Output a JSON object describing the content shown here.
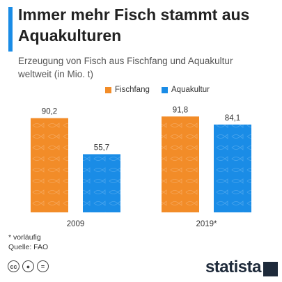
{
  "header": {
    "title": "Immer mehr Fisch stammt aus Aquakulturen",
    "subtitle": "Erzeugung von Fisch aus Fischfang und Aquakultur weltweit (in Mio. t)"
  },
  "legend": {
    "items": [
      {
        "label": "Fischfang",
        "color": "#f28c28"
      },
      {
        "label": "Aquakultur",
        "color": "#1a8ce6"
      }
    ]
  },
  "chart_data": {
    "type": "bar",
    "categories": [
      "2009",
      "2019*"
    ],
    "series": [
      {
        "name": "Fischfang",
        "values": [
          90.2,
          91.8
        ],
        "labels": [
          "90,2",
          "91,8"
        ],
        "color": "#f28c28"
      },
      {
        "name": "Aquakultur",
        "values": [
          55.7,
          84.1
        ],
        "labels": [
          "55,7",
          "84,1"
        ],
        "color": "#1a8ce6"
      }
    ],
    "title": "Immer mehr Fisch stammt aus Aquakulturen",
    "xlabel": "",
    "ylabel": "",
    "ylim": [
      0,
      100
    ],
    "grid": false,
    "legend_position": "top"
  },
  "notes": {
    "footnote": "* vorläufig",
    "source": "Quelle: FAO"
  },
  "footer": {
    "brand": "statista",
    "license_icons": [
      "cc-icon",
      "by-icon",
      "nd-icon"
    ]
  }
}
